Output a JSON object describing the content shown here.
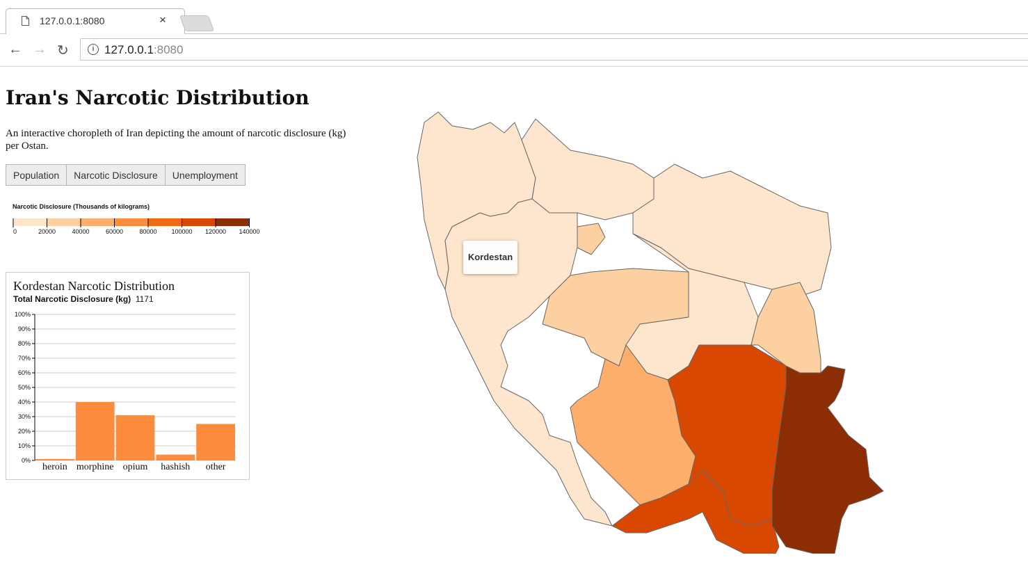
{
  "browser": {
    "tab_title": "127.0.0.1:8080",
    "tab_close": "×",
    "url_host": "127.0.0.1",
    "url_port": ":8080",
    "info_glyph": "i",
    "back_glyph": "←",
    "forward_glyph": "→",
    "reload_glyph": "↻"
  },
  "page": {
    "title": "Iran's Narcotic Distribution",
    "description": "An interactive choropleth of Iran depicting the amount of narcotic disclosure (kg) per Ostan.",
    "buttons": [
      "Population",
      "Narcotic Disclosure",
      "Unemployment"
    ]
  },
  "legend": {
    "title": "Narcotic Disclosure (Thousands of kilograms)",
    "ticks": [
      "0",
      "20000",
      "40000",
      "60000",
      "80000",
      "100000",
      "120000",
      "140000"
    ],
    "colors": [
      "#fee6ce",
      "#fdd0a2",
      "#fdae6b",
      "#fd8d3c",
      "#f16913",
      "#d94801",
      "#8c2d04"
    ]
  },
  "tooltip": {
    "label": "Kordestan"
  },
  "popup": {
    "title": "Kordestan Narcotic Distribution",
    "total_label": "Total Narcotic Disclosure (kg)",
    "total_value": "1171"
  },
  "chart_data": {
    "type": "bar",
    "categories": [
      "heroin",
      "morphine",
      "opium",
      "hashish",
      "other"
    ],
    "values": [
      1,
      40,
      31,
      4,
      25
    ],
    "ylim": [
      0,
      100
    ],
    "yticks": [
      "0%",
      "10%",
      "20%",
      "30%",
      "40%",
      "50%",
      "60%",
      "70%",
      "80%",
      "90%",
      "100%"
    ],
    "bar_color": "#fd8d3c",
    "grid": true
  },
  "map": {
    "fill_colors": {
      "light": "#fee6ce",
      "c2": "#fdd0a2",
      "c3": "#fdae6b",
      "c6": "#d94801",
      "c7": "#8c2d04"
    },
    "stroke_color": "#666666"
  }
}
